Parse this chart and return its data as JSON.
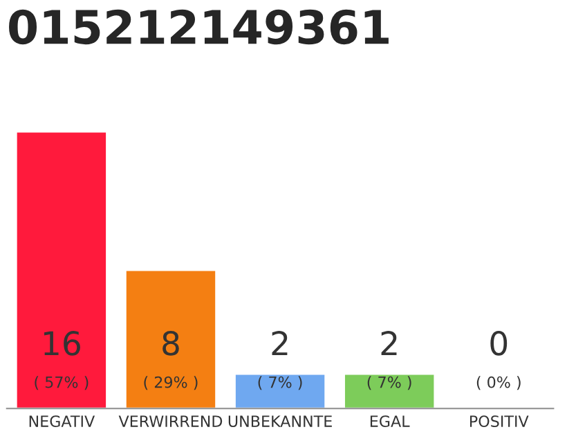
{
  "chart_data": {
    "type": "bar",
    "title": "015212149361",
    "categories": [
      "NEGATIV",
      "VERWIRREND",
      "UNBEKANNTE",
      "EGAL",
      "POSITIV"
    ],
    "values": [
      16,
      8,
      2,
      2,
      0
    ],
    "colors": [
      "#ff1a3c",
      "#f47f12",
      "#6fa8f0",
      "#7dcc5a",
      null
    ],
    "ylim": [
      0,
      16
    ],
    "tick_labels": "x",
    "data_labels": true,
    "grid": false,
    "legend": false,
    "annotations": [
      "( 57% )",
      "( 29% )",
      "( 7% )",
      "( 7% )",
      "( 0% )"
    ]
  }
}
